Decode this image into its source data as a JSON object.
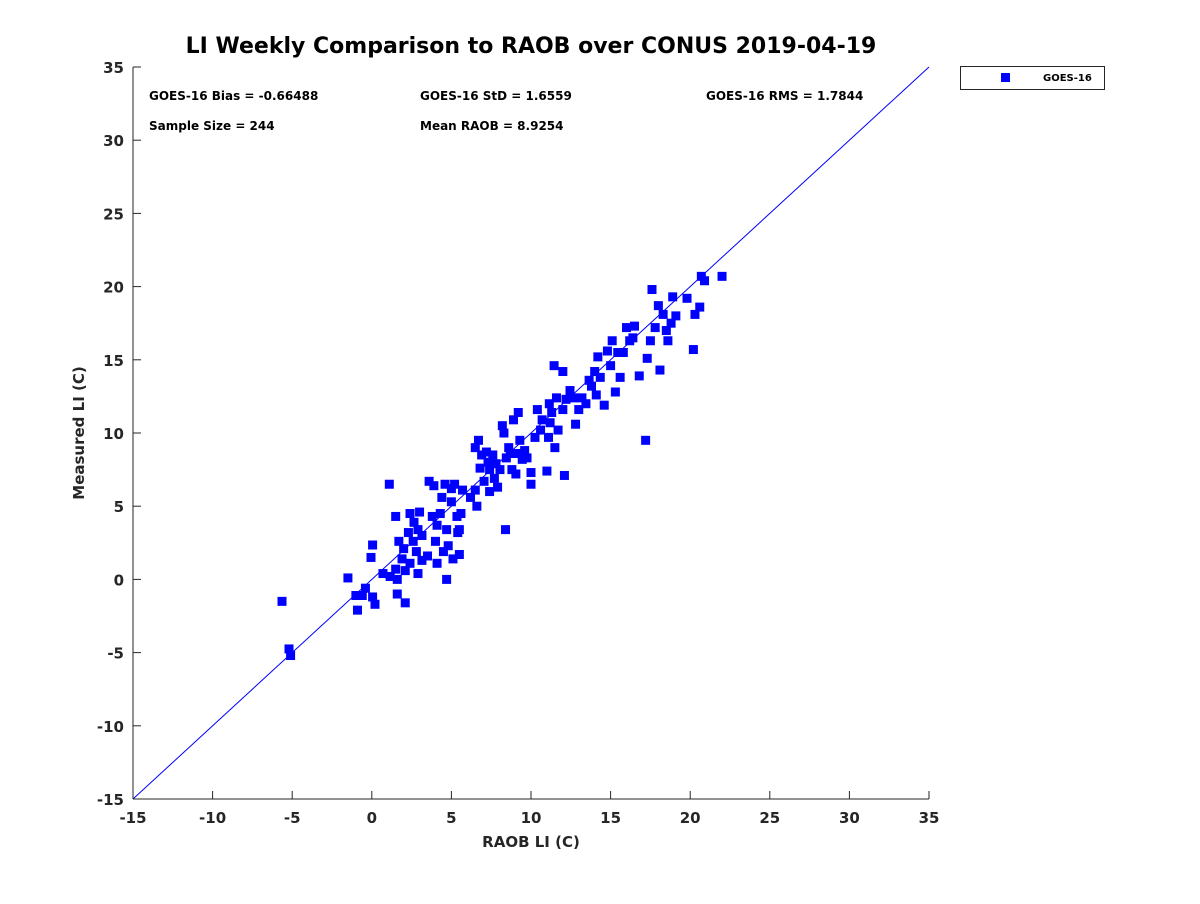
{
  "chart_data": {
    "type": "scatter",
    "title": "LI Weekly Comparison to RAOB over CONUS 2019-04-19",
    "xlabel": "RAOB LI (C)",
    "ylabel": "Measured LI (C)",
    "xlim": [
      -15,
      35
    ],
    "ylim": [
      -15,
      35
    ],
    "xticks": [
      -15,
      -10,
      -5,
      0,
      5,
      10,
      15,
      20,
      25,
      30,
      35
    ],
    "yticks": [
      -15,
      -10,
      -5,
      0,
      5,
      10,
      15,
      20,
      25,
      30,
      35
    ],
    "grid": false,
    "legend": {
      "position": "outside-top-right",
      "entries": [
        "GOES-16"
      ]
    },
    "reference_line": {
      "type": "one-to-one",
      "from": [
        -15,
        -15
      ],
      "to": [
        35,
        35
      ],
      "color": "#0000ff"
    },
    "annotations": [
      "GOES-16 Bias = -0.66488",
      "GOES-16 StD = 1.6559",
      "GOES-16 RMS = 1.7844",
      "Sample Size = 244",
      "Mean RAOB = 8.9254"
    ],
    "series": [
      {
        "name": "GOES-16",
        "color": "#0000ff",
        "marker": "square",
        "points": [
          [
            -5.64,
            -1.5
          ],
          [
            -5.2,
            -4.75
          ],
          [
            -5.1,
            -5.2
          ],
          [
            -1.5,
            0.1
          ],
          [
            -1.0,
            -1.1
          ],
          [
            -0.6,
            -1.1
          ],
          [
            -0.9,
            -2.1
          ],
          [
            -0.4,
            -0.6
          ],
          [
            0.05,
            2.35
          ],
          [
            -0.05,
            1.5
          ],
          [
            0.05,
            -1.2
          ],
          [
            0.2,
            -1.7
          ],
          [
            0.7,
            0.4
          ],
          [
            1.1,
            6.5
          ],
          [
            1.15,
            0.2
          ],
          [
            1.5,
            0.7
          ],
          [
            1.5,
            4.3
          ],
          [
            1.6,
            -1.0
          ],
          [
            1.7,
            2.6
          ],
          [
            1.6,
            0.0
          ],
          [
            1.9,
            1.4
          ],
          [
            2.0,
            2.1
          ],
          [
            2.1,
            -1.6
          ],
          [
            2.1,
            0.6
          ],
          [
            2.3,
            3.2
          ],
          [
            2.4,
            4.5
          ],
          [
            2.4,
            1.1
          ],
          [
            2.6,
            2.6
          ],
          [
            2.65,
            3.9
          ],
          [
            2.8,
            1.9
          ],
          [
            2.9,
            0.4
          ],
          [
            3.0,
            4.6
          ],
          [
            2.9,
            3.4
          ],
          [
            3.15,
            1.3
          ],
          [
            3.15,
            3.0
          ],
          [
            3.6,
            6.7
          ],
          [
            3.5,
            1.6
          ],
          [
            3.8,
            4.3
          ],
          [
            3.9,
            6.4
          ],
          [
            4.0,
            2.6
          ],
          [
            4.1,
            3.7
          ],
          [
            4.1,
            1.1
          ],
          [
            4.3,
            4.5
          ],
          [
            4.4,
            5.6
          ],
          [
            4.5,
            1.9
          ],
          [
            4.6,
            6.5
          ],
          [
            4.7,
            3.4
          ],
          [
            4.7,
            0.0
          ],
          [
            4.8,
            2.3
          ],
          [
            5.0,
            5.3
          ],
          [
            5.0,
            6.2
          ],
          [
            5.1,
            1.4
          ],
          [
            5.2,
            6.5
          ],
          [
            5.35,
            4.3
          ],
          [
            5.4,
            3.2
          ],
          [
            5.5,
            1.7
          ],
          [
            5.6,
            4.5
          ],
          [
            5.5,
            3.4
          ],
          [
            5.7,
            6.1
          ],
          [
            6.2,
            5.6
          ],
          [
            6.5,
            9.0
          ],
          [
            6.5,
            6.1
          ],
          [
            6.6,
            5.0
          ],
          [
            6.7,
            9.5
          ],
          [
            6.8,
            7.6
          ],
          [
            6.9,
            8.5
          ],
          [
            7.05,
            6.7
          ],
          [
            7.2,
            8.7
          ],
          [
            7.3,
            8.0
          ],
          [
            7.4,
            7.5
          ],
          [
            7.4,
            6.0
          ],
          [
            7.6,
            8.5
          ],
          [
            7.7,
            6.9
          ],
          [
            7.8,
            7.9
          ],
          [
            7.9,
            6.3
          ],
          [
            8.05,
            7.5
          ],
          [
            8.2,
            10.5
          ],
          [
            8.3,
            10.0
          ],
          [
            8.4,
            3.4
          ],
          [
            8.45,
            8.3
          ],
          [
            8.6,
            9.0
          ],
          [
            8.7,
            8.6
          ],
          [
            8.8,
            7.5
          ],
          [
            8.9,
            10.9
          ],
          [
            9.05,
            7.2
          ],
          [
            9.2,
            8.6
          ],
          [
            9.2,
            11.4
          ],
          [
            9.3,
            9.5
          ],
          [
            9.45,
            8.2
          ],
          [
            9.6,
            8.8
          ],
          [
            9.75,
            8.3
          ],
          [
            10.0,
            7.3
          ],
          [
            10.0,
            6.5
          ],
          [
            10.25,
            9.7
          ],
          [
            10.4,
            11.6
          ],
          [
            10.6,
            10.2
          ],
          [
            10.7,
            10.9
          ],
          [
            11.0,
            7.4
          ],
          [
            11.1,
            9.7
          ],
          [
            11.15,
            12.0
          ],
          [
            11.2,
            10.7
          ],
          [
            11.3,
            11.4
          ],
          [
            11.45,
            14.6
          ],
          [
            11.5,
            9.0
          ],
          [
            11.6,
            12.4
          ],
          [
            11.7,
            10.2
          ],
          [
            12.0,
            14.2
          ],
          [
            12.0,
            11.6
          ],
          [
            12.1,
            7.1
          ],
          [
            12.2,
            12.3
          ],
          [
            12.45,
            12.9
          ],
          [
            12.7,
            12.4
          ],
          [
            12.8,
            10.6
          ],
          [
            13.0,
            11.6
          ],
          [
            13.2,
            12.4
          ],
          [
            13.45,
            12.0
          ],
          [
            13.65,
            13.6
          ],
          [
            13.8,
            13.2
          ],
          [
            14.0,
            14.2
          ],
          [
            14.1,
            12.6
          ],
          [
            14.2,
            15.2
          ],
          [
            14.35,
            13.8
          ],
          [
            14.6,
            11.9
          ],
          [
            14.8,
            15.6
          ],
          [
            15.0,
            14.6
          ],
          [
            15.1,
            16.3
          ],
          [
            15.3,
            12.8
          ],
          [
            15.45,
            15.5
          ],
          [
            15.6,
            13.8
          ],
          [
            15.8,
            15.5
          ],
          [
            16.0,
            17.2
          ],
          [
            16.2,
            16.3
          ],
          [
            16.4,
            16.5
          ],
          [
            16.5,
            17.3
          ],
          [
            16.8,
            13.9
          ],
          [
            17.2,
            9.5
          ],
          [
            17.3,
            15.1
          ],
          [
            17.5,
            16.3
          ],
          [
            17.6,
            19.8
          ],
          [
            17.8,
            17.2
          ],
          [
            18.0,
            18.7
          ],
          [
            18.1,
            14.3
          ],
          [
            18.3,
            18.1
          ],
          [
            18.5,
            17.0
          ],
          [
            18.6,
            16.3
          ],
          [
            18.8,
            17.5
          ],
          [
            18.9,
            19.3
          ],
          [
            19.1,
            18.0
          ],
          [
            19.8,
            19.2
          ],
          [
            20.2,
            15.7
          ],
          [
            20.3,
            18.1
          ],
          [
            20.6,
            18.6
          ],
          [
            20.7,
            20.7
          ],
          [
            20.9,
            20.4
          ],
          [
            22.0,
            20.7
          ]
        ]
      }
    ]
  }
}
